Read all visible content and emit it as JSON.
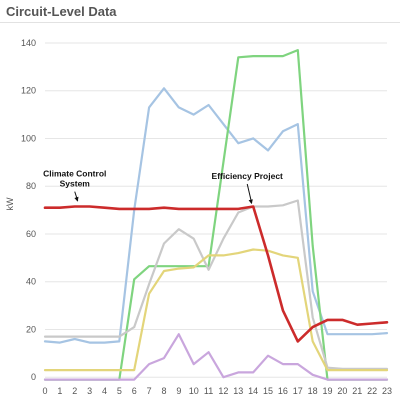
{
  "title": "Circuit-Level Data",
  "chart_data": {
    "type": "line",
    "title": "Circuit-Level Data",
    "xlabel": "",
    "ylabel": "kW",
    "x": [
      0,
      1,
      2,
      3,
      4,
      5,
      6,
      7,
      8,
      9,
      10,
      11,
      12,
      13,
      14,
      15,
      16,
      17,
      18,
      19,
      20,
      21,
      22,
      23
    ],
    "xlim": [
      0,
      23
    ],
    "ylim": [
      -2,
      145
    ],
    "yticks": [
      0,
      20,
      40,
      60,
      80,
      100,
      120,
      140
    ],
    "grid": true,
    "series": [
      {
        "color": "#a6c4e3",
        "values": [
          15,
          14.5,
          16,
          14.5,
          14.5,
          15,
          70,
          113,
          121,
          113,
          110,
          114,
          106,
          98,
          100,
          95,
          103,
          106,
          36,
          18,
          18,
          18,
          18,
          18.5
        ]
      },
      {
        "color": "#7fd47f",
        "values": [
          -1,
          -1,
          -1,
          -1,
          -1,
          -1,
          41,
          46.5,
          46.5,
          46.5,
          46.5,
          46.5,
          90,
          134,
          134.5,
          134.5,
          134.5,
          137,
          55,
          -1,
          -1,
          -1,
          -1,
          -1
        ]
      },
      {
        "color": "#c9c9c9",
        "values": [
          17,
          17,
          17,
          17,
          17,
          17,
          21,
          39,
          56,
          62,
          58,
          45,
          58,
          69,
          71.5,
          71.5,
          72,
          74,
          25,
          4,
          3.5,
          3.5,
          3.5,
          3.5
        ]
      },
      {
        "color": "#e3d57a",
        "values": [
          3,
          3,
          3,
          3,
          3,
          3,
          3,
          35,
          44.5,
          45.5,
          46,
          51,
          51,
          52,
          53.5,
          53,
          51,
          50,
          15,
          3,
          3,
          3,
          3,
          3
        ]
      },
      {
        "color": "#c9a6dd",
        "values": [
          -1,
          -1,
          -1,
          -1,
          -1,
          -1,
          -1,
          5.5,
          8,
          18,
          5.5,
          10.5,
          0,
          2,
          2,
          9,
          5.5,
          5.5,
          1,
          -1,
          -1,
          -1,
          -1,
          -1
        ]
      },
      {
        "color": "#cc2b2b",
        "values": [
          71,
          71,
          71.5,
          71.5,
          71,
          70.5,
          70.5,
          70.5,
          71,
          70.5,
          70.5,
          70.5,
          70.5,
          70.5,
          71.5,
          51,
          28,
          15,
          21,
          24,
          24,
          22,
          22.5,
          23
        ]
      }
    ],
    "annotations": [
      {
        "lines": [
          "Climate Control",
          "System"
        ],
        "x": 2,
        "y": 84,
        "arrow_to": [
          2.2,
          73.5
        ]
      },
      {
        "lines": [
          "Efficiency Project"
        ],
        "x": 13.6,
        "y": 83,
        "arrow_to": [
          13.9,
          72.5
        ]
      }
    ]
  }
}
